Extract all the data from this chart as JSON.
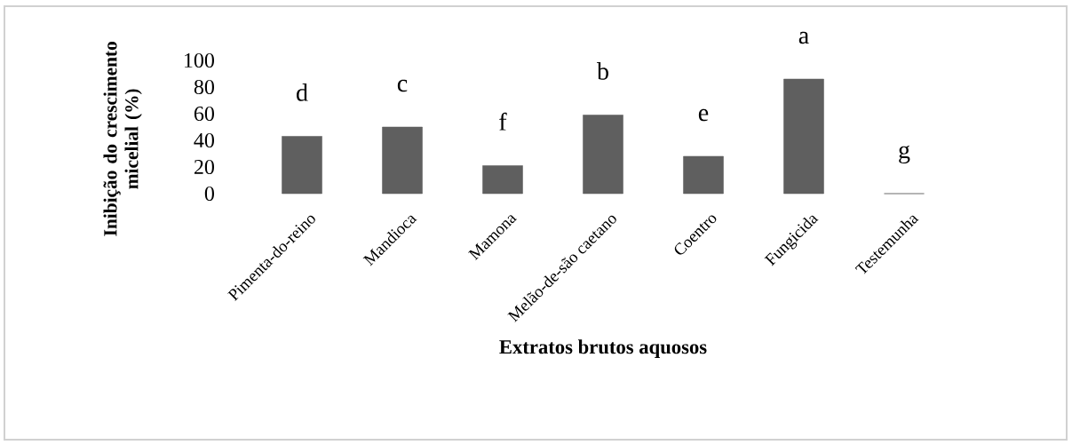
{
  "chart_data": {
    "type": "bar",
    "xlabel": "Extratos brutos aquosos",
    "ylabel": "Inibição do crescimento micelial (%)",
    "categories": [
      "Pimenta-do-reino",
      "Mandioca",
      "Mamona",
      "Melão-de-são caetano",
      "Coentro",
      "Fungicida",
      "Testemunha"
    ],
    "values": [
      43,
      50,
      21,
      59,
      28,
      86,
      0
    ],
    "color": "#5f5f5f",
    "ylim": [
      0,
      100
    ],
    "yticks": [
      0,
      20,
      40,
      60,
      80,
      100
    ],
    "grid": false,
    "annotations": [
      "d",
      "c",
      "f",
      "b",
      "e",
      "a",
      "g"
    ]
  }
}
